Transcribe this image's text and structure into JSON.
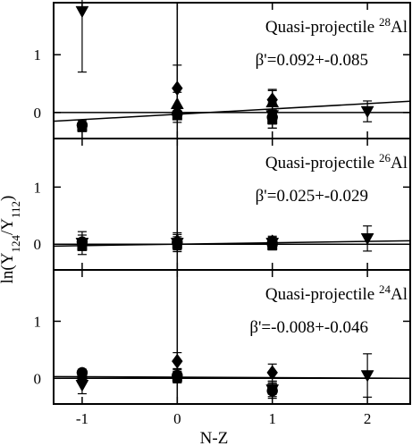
{
  "chart_data": {
    "type": "scatter",
    "xlabel": "N-Z",
    "ylabel": "ln(Y124/Y112)",
    "ylabel_parts": {
      "prefix": "ln(Y",
      "sub1": "124",
      "mid": "/Y",
      "sub2": "112",
      "suffix": ")"
    },
    "x_ticks": [
      -1,
      0,
      1,
      2
    ],
    "xlim": [
      -1.3,
      2.45
    ],
    "panels": [
      {
        "title_prefix": "Quasi-projectile ",
        "mass_number": "28",
        "element": "Al",
        "beta_text": "β'=0.092+-0.085",
        "ylim": [
          -0.45,
          1.9
        ],
        "y_ticks": [
          0,
          1
        ],
        "fit": {
          "slope": 0.092,
          "intercept": -0.03
        },
        "series": [
          {
            "marker": "triangle-down",
            "points": [
              {
                "x": -1,
                "y": 1.75,
                "err": 1.05
              },
              {
                "x": 1,
                "y": -0.05,
                "err": 0.22
              },
              {
                "x": 2,
                "y": 0.02,
                "err": 0.18
              }
            ]
          },
          {
            "marker": "diamond",
            "points": [
              {
                "x": 0,
                "y": 0.42,
                "err": 0.4
              },
              {
                "x": 1,
                "y": 0.22,
                "err": 0.18
              }
            ]
          },
          {
            "marker": "triangle-up",
            "points": [
              {
                "x": 0,
                "y": 0.15,
                "err": 0.2
              },
              {
                "x": 1,
                "y": 0.18,
                "err": 0.2
              }
            ]
          },
          {
            "marker": "square",
            "points": [
              {
                "x": -1,
                "y": -0.25,
                "err": 0.08
              },
              {
                "x": 0,
                "y": -0.05,
                "err": 0.12
              },
              {
                "x": 1,
                "y": -0.12,
                "err": 0.15
              }
            ]
          },
          {
            "marker": "circle",
            "points": [
              {
                "x": -1,
                "y": -0.22,
                "err": 0.08
              },
              {
                "x": 0,
                "y": -0.02,
                "err": 0.1
              },
              {
                "x": 1,
                "y": -0.08,
                "err": 0.12
              }
            ]
          }
        ]
      },
      {
        "title_prefix": "Quasi-projectile ",
        "mass_number": "26",
        "element": "Al",
        "beta_text": "β'=0.025+-0.029",
        "ylim": [
          -0.45,
          1.85
        ],
        "y_ticks": [
          0,
          1
        ],
        "fit": {
          "slope": 0.025,
          "intercept": 0.0
        },
        "series": [
          {
            "marker": "triangle-down",
            "points": [
              {
                "x": -1,
                "y": 0.02,
                "err": 0.2
              },
              {
                "x": 0,
                "y": 0.02,
                "err": 0.15
              },
              {
                "x": 1,
                "y": 0.02,
                "err": 0.12
              },
              {
                "x": 2,
                "y": 0.1,
                "err": 0.22
              }
            ]
          },
          {
            "marker": "diamond",
            "points": [
              {
                "x": -1,
                "y": 0.0,
                "err": 0.1
              },
              {
                "x": 0,
                "y": 0.05,
                "err": 0.15
              },
              {
                "x": 1,
                "y": 0.04,
                "err": 0.08
              }
            ]
          },
          {
            "marker": "square",
            "points": [
              {
                "x": -1,
                "y": -0.03,
                "err": 0.08
              },
              {
                "x": 0,
                "y": 0.0,
                "err": 0.08
              },
              {
                "x": 1,
                "y": -0.02,
                "err": 0.06
              }
            ]
          },
          {
            "marker": "circle",
            "points": [
              {
                "x": -1,
                "y": 0.04,
                "err": 0.12
              },
              {
                "x": 0,
                "y": 0.03,
                "err": 0.1
              },
              {
                "x": 1,
                "y": 0.0,
                "err": 0.08
              }
            ]
          }
        ]
      },
      {
        "title_prefix": "Quasi-projectile ",
        "mass_number": "24",
        "element": "Al",
        "beta_text": "β'=-0.008+-0.046",
        "ylim": [
          -0.45,
          1.9
        ],
        "y_ticks": [
          0,
          1
        ],
        "fit": {
          "slope": -0.008,
          "intercept": 0.02
        },
        "series": [
          {
            "marker": "triangle-down",
            "points": [
              {
                "x": -1,
                "y": -0.12,
                "err": 0.15
              },
              {
                "x": 1,
                "y": -0.2,
                "err": 0.15
              },
              {
                "x": 2,
                "y": 0.05,
                "err": 0.38
              }
            ]
          },
          {
            "marker": "diamond",
            "points": [
              {
                "x": 0,
                "y": 0.3,
                "err": 0.15
              },
              {
                "x": 1,
                "y": 0.1,
                "err": 0.15
              }
            ]
          },
          {
            "marker": "square",
            "points": [
              {
                "x": -1,
                "y": 0.0,
                "err": 0.08
              },
              {
                "x": 0,
                "y": 0.02,
                "err": 0.1
              },
              {
                "x": 1,
                "y": -0.18,
                "err": 0.1
              }
            ]
          },
          {
            "marker": "circle",
            "points": [
              {
                "x": -1,
                "y": 0.1,
                "err": 0.06
              },
              {
                "x": 0,
                "y": 0.05,
                "err": 0.12
              },
              {
                "x": 1,
                "y": -0.22,
                "err": 0.1
              }
            ]
          }
        ]
      }
    ]
  }
}
